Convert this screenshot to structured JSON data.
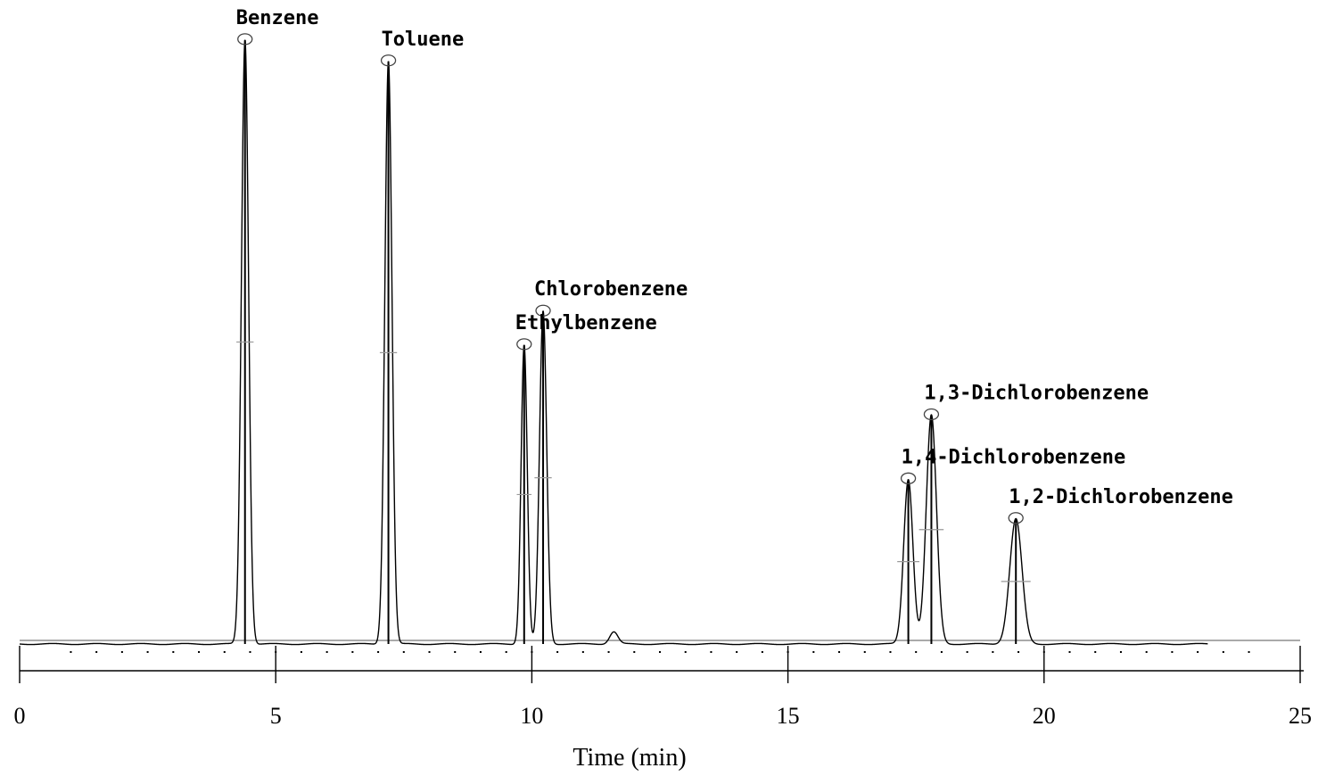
{
  "chart_data": {
    "type": "line",
    "xlabel": "Time (min)",
    "ylabel": "",
    "xlim": [
      0,
      25
    ],
    "ylim": [
      0,
      1
    ],
    "x_ticks": [
      0,
      5,
      10,
      15,
      20,
      25
    ],
    "x_tick_labels": [
      "0",
      "5",
      "10",
      "15",
      "20",
      "25"
    ],
    "grid": false,
    "legend": "none",
    "colors": {
      "trace": "#000000",
      "baseline": "#555555",
      "marker": "#444444"
    },
    "peaks": [
      {
        "label": "Benzene",
        "rt": 4.4,
        "height": 0.99,
        "width": 0.07
      },
      {
        "label": "Toluene",
        "rt": 7.2,
        "height": 0.955,
        "width": 0.07
      },
      {
        "label": "Ethylbenzene",
        "rt": 9.85,
        "height": 0.49,
        "width": 0.06
      },
      {
        "label": "Chlorobenzene",
        "rt": 10.22,
        "height": 0.545,
        "width": 0.07
      },
      {
        "label": "1,4-Dichlorobenzene",
        "rt": 17.35,
        "height": 0.27,
        "width": 0.09
      },
      {
        "label": "1,3-Dichlorobenzene",
        "rt": 17.8,
        "height": 0.375,
        "width": 0.1
      },
      {
        "label": "1,2-Dichlorobenzene",
        "rt": 19.45,
        "height": 0.205,
        "width": 0.12
      }
    ],
    "minor_peaks": [
      {
        "rt": 11.6,
        "height": 0.02,
        "width": 0.08
      }
    ],
    "trace_end": 23.2
  }
}
